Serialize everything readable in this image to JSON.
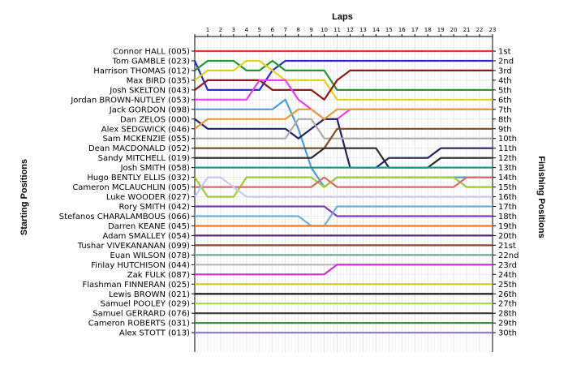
{
  "chart_data": {
    "type": "line",
    "title": "Laps",
    "ylabel_left": "Starting Positions",
    "ylabel_right": "Finishing Positions",
    "laps": 23,
    "grid": true,
    "x": [
      0,
      1,
      2,
      3,
      4,
      5,
      6,
      7,
      8,
      9,
      10,
      11,
      12,
      13,
      14,
      15,
      16,
      17,
      18,
      19,
      20,
      21,
      22,
      23
    ],
    "finishing_labels": [
      "1st",
      "2nd",
      "3rd",
      "4th",
      "5th",
      "6th",
      "7th",
      "8th",
      "9th",
      "10th",
      "11th",
      "12th",
      "13th",
      "14th",
      "15th",
      "16th",
      "17th",
      "18th",
      "19th",
      "20th",
      "21st",
      "22nd",
      "23rd",
      "24th",
      "25th",
      "26th",
      "27th",
      "28th",
      "29th",
      "30th"
    ],
    "series": [
      {
        "name": "Connor HALL (005)",
        "color": "#e8352f",
        "positions": [
          1,
          1,
          1,
          1,
          1,
          1,
          1,
          1,
          1,
          1,
          1,
          1,
          1,
          1,
          1,
          1,
          1,
          1,
          1,
          1,
          1,
          1,
          1,
          1
        ]
      },
      {
        "name": "Tom GAMBLE (023)",
        "color": "#2a2ad6",
        "positions": [
          2,
          5,
          5,
          5,
          5,
          5,
          3,
          2,
          2,
          2,
          2,
          2,
          2,
          2,
          2,
          2,
          2,
          2,
          2,
          2,
          2,
          2,
          2,
          2
        ]
      },
      {
        "name": "Harrison THOMAS (012)",
        "color": "#1f9a2e",
        "positions": [
          3,
          2,
          2,
          2,
          3,
          3,
          2,
          3,
          3,
          3,
          3,
          5,
          5,
          5,
          5,
          5,
          5,
          5,
          5,
          5,
          5,
          5,
          5,
          5
        ]
      },
      {
        "name": "Max BIRD (035)",
        "color": "#e0d31c",
        "positions": [
          4,
          3,
          3,
          3,
          2,
          2,
          3,
          4,
          4,
          4,
          4,
          6,
          6,
          6,
          6,
          6,
          6,
          6,
          6,
          6,
          6,
          6,
          6,
          6
        ]
      },
      {
        "name": "Josh SKELTON (043)",
        "color": "#8a1a1a",
        "positions": [
          5,
          4,
          4,
          4,
          4,
          4,
          5,
          5,
          5,
          5,
          6,
          4,
          3,
          3,
          3,
          3,
          3,
          3,
          3,
          3,
          3,
          3,
          3,
          3
        ]
      },
      {
        "name": "Jordan BROWN-NUTLEY (053)",
        "color": "#ee3cee",
        "positions": [
          6,
          6,
          6,
          6,
          6,
          4,
          4,
          4,
          6,
          7,
          8,
          8,
          7,
          7,
          7,
          7,
          7,
          7,
          7,
          7,
          7,
          7,
          7,
          7
        ]
      },
      {
        "name": "Jack GORDON (098)",
        "color": "#4a9edc",
        "positions": [
          7,
          7,
          7,
          7,
          7,
          7,
          7,
          6,
          9,
          13,
          15,
          14,
          14,
          14,
          14,
          14,
          14,
          14,
          14,
          14,
          14,
          14,
          14,
          14
        ]
      },
      {
        "name": "Dan ZELOS (000)",
        "color": "#222266",
        "positions": [
          8,
          9,
          9,
          9,
          9,
          9,
          9,
          9,
          10,
          9,
          8,
          8,
          13,
          13,
          13,
          12,
          12,
          12,
          12,
          11,
          11,
          11,
          11,
          11
        ]
      },
      {
        "name": "Alex SEDGWICK (046)",
        "color": "#e89a3a",
        "positions": [
          9,
          8,
          8,
          8,
          8,
          8,
          8,
          8,
          7,
          7,
          8,
          7,
          7,
          7,
          7,
          7,
          7,
          7,
          7,
          7,
          7,
          7,
          7,
          7
        ]
      },
      {
        "name": "Sam MCKENZIE (055)",
        "color": "#aaaaaa",
        "positions": [
          10,
          10,
          10,
          10,
          10,
          10,
          10,
          10,
          8,
          8,
          10,
          10,
          10,
          10,
          10,
          10,
          10,
          10,
          10,
          10,
          10,
          10,
          10,
          10
        ]
      },
      {
        "name": "Dean MACDONALD (052)",
        "color": "#7a4a1a",
        "positions": [
          11,
          11,
          11,
          11,
          11,
          11,
          11,
          11,
          11,
          11,
          11,
          9,
          9,
          9,
          9,
          9,
          9,
          9,
          9,
          9,
          9,
          9,
          9,
          9
        ]
      },
      {
        "name": "Sandy MITCHELL (019)",
        "color": "#2a2a2a",
        "positions": [
          12,
          12,
          12,
          12,
          12,
          12,
          12,
          12,
          12,
          12,
          11,
          11,
          11,
          11,
          11,
          13,
          13,
          13,
          13,
          12,
          12,
          12,
          12,
          12
        ]
      },
      {
        "name": "Josh SMITH (058)",
        "color": "#1f9a8a",
        "positions": [
          13,
          13,
          13,
          13,
          13,
          13,
          13,
          13,
          13,
          13,
          13,
          13,
          13,
          13,
          13,
          13,
          13,
          13,
          13,
          13,
          13,
          13,
          13,
          13
        ]
      },
      {
        "name": "Hugo BENTLY ELLIS (032)",
        "color": "#9acd32",
        "positions": [
          14,
          16,
          16,
          16,
          14,
          14,
          14,
          14,
          14,
          14,
          15,
          14,
          14,
          14,
          14,
          14,
          14,
          14,
          14,
          14,
          14,
          15,
          15,
          15
        ]
      },
      {
        "name": "Cameron MCLAUCHLIN (005)",
        "color": "#d86a6a",
        "positions": [
          15,
          15,
          15,
          15,
          15,
          15,
          15,
          15,
          15,
          15,
          14,
          15,
          15,
          15,
          15,
          15,
          15,
          15,
          15,
          15,
          15,
          14,
          14,
          14
        ]
      },
      {
        "name": "Luke WOODER (027)",
        "color": "#c8c8e8",
        "positions": [
          16,
          14,
          14,
          15,
          16,
          16,
          16,
          16,
          16,
          16,
          16,
          16,
          16,
          16,
          16,
          16,
          16,
          16,
          16,
          16,
          16,
          16,
          16,
          16
        ]
      },
      {
        "name": "Rory SMITH (042)",
        "color": "#7b3fb0",
        "positions": [
          17,
          17,
          17,
          17,
          17,
          17,
          17,
          17,
          17,
          17,
          17,
          18,
          18,
          18,
          18,
          18,
          18,
          18,
          18,
          18,
          18,
          18,
          18,
          18
        ]
      },
      {
        "name": "Stefanos CHARALAMBOUS (066)",
        "color": "#6ab0d8",
        "positions": [
          18,
          18,
          18,
          18,
          18,
          18,
          18,
          18,
          18,
          19,
          19,
          17,
          17,
          17,
          17,
          17,
          17,
          17,
          17,
          17,
          17,
          17,
          17,
          17
        ]
      },
      {
        "name": "Darren KEANE (045)",
        "color": "#f07a2a",
        "positions": [
          19,
          19,
          19,
          19,
          19,
          19,
          19,
          19,
          19,
          19,
          19,
          19,
          19,
          19,
          19,
          19,
          19,
          19,
          19,
          19,
          19,
          19,
          19,
          19
        ]
      },
      {
        "name": "Adam SMALLEY (054)",
        "color": "#5a2a7a",
        "positions": [
          20,
          20,
          20,
          20,
          20,
          20,
          20,
          20,
          20,
          20,
          20,
          20,
          20,
          20,
          20,
          20,
          20,
          20,
          20,
          20,
          20,
          20,
          20,
          20
        ]
      },
      {
        "name": "Tushar VIVEKANANAN (099)",
        "color": "#8b4a2a",
        "positions": [
          21,
          21,
          21,
          21,
          21,
          21,
          21,
          21,
          21,
          21,
          21,
          21,
          21,
          21,
          21,
          21,
          21,
          21,
          21,
          21,
          21,
          21,
          21,
          21
        ]
      },
      {
        "name": "Euan WILSON (078)",
        "color": "#6aaa9a",
        "positions": [
          22,
          22,
          22,
          22,
          22,
          22,
          22,
          22,
          22,
          22,
          22,
          22,
          22,
          22,
          22,
          22,
          22,
          22,
          22,
          22,
          22,
          22,
          22,
          22
        ]
      },
      {
        "name": "Finlay HUTCHISON (044)",
        "color": "#b8b8b8",
        "positions": [
          23,
          23,
          23,
          23,
          23,
          23,
          23,
          23,
          23,
          23,
          23,
          23,
          23,
          23,
          23,
          23,
          23,
          23,
          23,
          23,
          23,
          23,
          23,
          23
        ]
      },
      {
        "name": "Zak FULK (087)",
        "color": "#cc33cc",
        "positions": [
          24,
          24,
          24,
          24,
          24,
          24,
          24,
          24,
          24,
          24,
          24,
          23,
          23,
          23,
          23,
          23,
          23,
          23,
          23,
          23,
          23,
          23,
          23,
          23
        ]
      },
      {
        "name": "Flashman FINNERAN (025)",
        "color": "#d4c81a",
        "positions": [
          25,
          25,
          25,
          25,
          25,
          25,
          25,
          25,
          25,
          25,
          25,
          25,
          25,
          25,
          25,
          25,
          25,
          25,
          25,
          25,
          25,
          25,
          25,
          25
        ]
      },
      {
        "name": "Lewis BROWN (021)",
        "color": "#111111",
        "positions": [
          26,
          26,
          26,
          26,
          26,
          26,
          26,
          26,
          26,
          26,
          26,
          26,
          26,
          26,
          26,
          26,
          26,
          26,
          26,
          26,
          26,
          26,
          26,
          26
        ]
      },
      {
        "name": "Samuel POOLEY (029)",
        "color": "#a8d848",
        "positions": [
          27,
          27,
          27,
          27,
          27,
          27,
          27,
          27,
          27,
          27,
          27,
          27,
          27,
          27,
          27,
          27,
          27,
          27,
          27,
          27,
          27,
          27,
          27,
          27
        ]
      },
      {
        "name": "Samuel GERRARD (076)",
        "color": "#3a3a3a",
        "positions": [
          28,
          28,
          28,
          28,
          28,
          28,
          28,
          28,
          28,
          28,
          28,
          28,
          28,
          28,
          28,
          28,
          28,
          28,
          28,
          28,
          28,
          28,
          28,
          28
        ]
      },
      {
        "name": "Cameron ROBERTS (031)",
        "color": "#2a8a3a",
        "positions": [
          29,
          29,
          29,
          29,
          29,
          29,
          29,
          29,
          29,
          29,
          29,
          29,
          29,
          29,
          29,
          29,
          29,
          29,
          29,
          29,
          29,
          29,
          29,
          29
        ]
      },
      {
        "name": "Alex STOTT (013)",
        "color": "#9a7ad0",
        "positions": [
          30,
          30,
          30,
          30,
          30,
          30,
          30,
          30,
          30,
          30,
          30,
          30,
          30,
          30,
          30,
          30,
          30,
          30,
          30,
          30,
          30,
          30,
          30,
          30
        ]
      }
    ]
  }
}
